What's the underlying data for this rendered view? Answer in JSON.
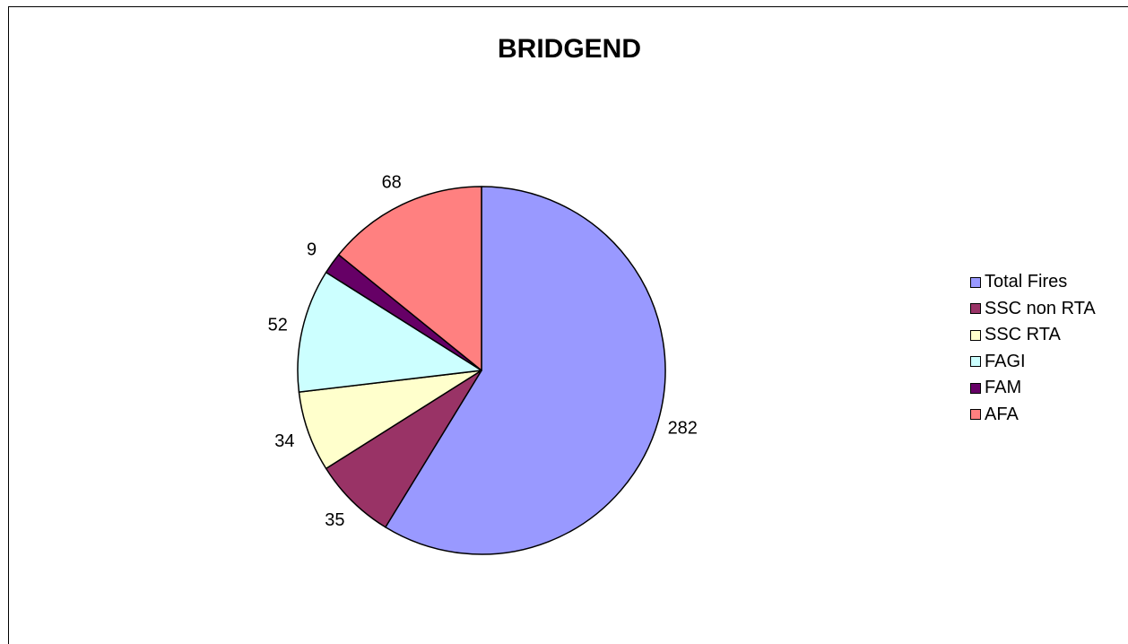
{
  "chart_data": {
    "type": "pie",
    "title": "BRIDGEND",
    "categories": [
      "Total Fires",
      "SSC non RTA",
      "SSC RTA",
      "FAGI",
      "FAM",
      "AFA"
    ],
    "values": [
      282,
      35,
      34,
      52,
      9,
      68
    ],
    "colors": [
      "#9999ff",
      "#993366",
      "#ffffcc",
      "#ccffff",
      "#660066",
      "#ff8080"
    ],
    "start_angle_deg": 0,
    "direction": "clockwise",
    "legend_position": "right"
  }
}
